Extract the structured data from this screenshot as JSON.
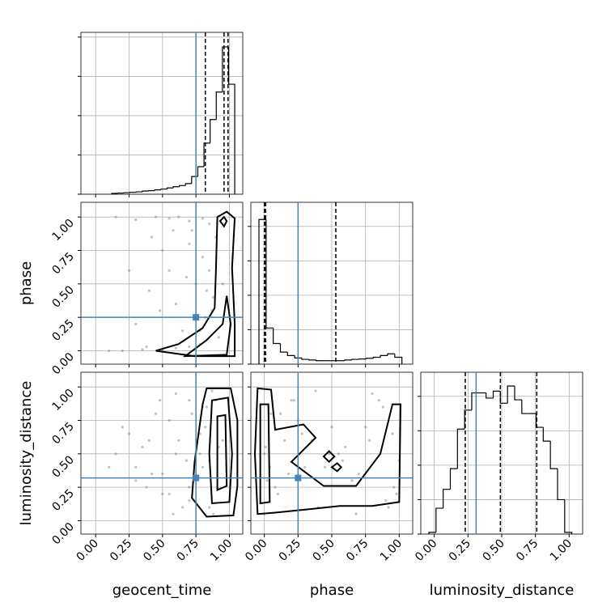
{
  "chart_data": [
    {
      "type": "histogram",
      "xtick_labels": false,
      "ytick_labels": false,
      "color": "#000000",
      "truth_color": "#4682b4",
      "xlim": [
        -0.11,
        1.1
      ],
      "ylim": [
        0,
        4.12
      ],
      "xticks": [
        {
          "value": 0,
          "label": "0.00"
        },
        {
          "value": 0.25,
          "label": "0.25"
        },
        {
          "value": 0.5,
          "label": "0.50"
        },
        {
          "value": 0.75,
          "label": "0.75"
        },
        {
          "value": 1,
          "label": "1.00"
        }
      ],
      "yticks": [
        0,
        1,
        2,
        3,
        4
      ],
      "bins": [
        0.12,
        0.166,
        0.212,
        0.258,
        0.304,
        0.35,
        0.396,
        0.442,
        0.488,
        0.534,
        0.58,
        0.626,
        0.672,
        0.718,
        0.764,
        0.81,
        0.856,
        0.902,
        0.948,
        0.994,
        1.04
      ],
      "values": [
        0.02,
        0.03,
        0.04,
        0.05,
        0.06,
        0.08,
        0.09,
        0.11,
        0.13,
        0.16,
        0.19,
        0.22,
        0.27,
        0.45,
        0.7,
        1.3,
        1.9,
        2.6,
        3.75,
        2.8
      ],
      "truth": 0.75,
      "quantiles": [
        0.82,
        0.96,
        0.99
      ]
    },
    {
      "type": "scatter",
      "xtick_labels": false,
      "ytick_labels": true,
      "ylabel": "phase",
      "color": "#000000",
      "truth_color": "#4682b4",
      "xlim": [
        -0.11,
        1.1
      ],
      "ylim": [
        -0.1,
        1.11
      ],
      "xticks": [
        {
          "value": 0,
          "label": "0.00"
        },
        {
          "value": 0.25,
          "label": "0.25"
        },
        {
          "value": 0.5,
          "label": "0.50"
        },
        {
          "value": 0.75,
          "label": "0.75"
        },
        {
          "value": 1,
          "label": "1.00"
        }
      ],
      "yticks": [
        {
          "value": 0,
          "label": "0.00"
        },
        {
          "value": 0.25,
          "label": "0.25"
        },
        {
          "value": 0.5,
          "label": "0.50"
        },
        {
          "value": 0.75,
          "label": "0.75"
        },
        {
          "value": 1,
          "label": "1.00"
        }
      ],
      "x": [
        0.15,
        0.3,
        0.45,
        0.55,
        0.62,
        0.7,
        0.8,
        0.85,
        0.2,
        0.35,
        0.5,
        0.6,
        0.7,
        0.78,
        0.85,
        0.88,
        0.8,
        0.7,
        0.55,
        0.4,
        0.3,
        0.6,
        0.75,
        0.82,
        0.9,
        0.65,
        0.5,
        0.92,
        0.72,
        0.42,
        0.25,
        0.87,
        0.78,
        0.68,
        0.58,
        0.95,
        0.83,
        0.38,
        0.1,
        0.48
      ],
      "y": [
        1.0,
        0.98,
        1.0,
        0.99,
        1.0,
        0.97,
        0.99,
        0.95,
        0.0,
        0.01,
        0.0,
        0.02,
        0.03,
        0.05,
        0.6,
        0.4,
        0.7,
        0.8,
        0.6,
        0.45,
        0.2,
        0.35,
        0.5,
        0.25,
        0.85,
        0.15,
        0.75,
        0.1,
        0.9,
        0.85,
        0.6,
        0.3,
        0.15,
        0.55,
        0.9,
        0.5,
        0.45,
        0.03,
        0.0,
        0.3
      ],
      "contours": [
        {
          "x": [
            0.45,
            0.74,
            1.04,
            1.04,
            1.02,
            1.04,
            0.98,
            0.91,
            0.9,
            0.89,
            0.8,
            0.62
          ],
          "y": [
            0.0,
            -0.04,
            -0.04,
            0.2,
            0.62,
            0.99,
            1.04,
            1.0,
            0.62,
            0.32,
            0.17,
            0.05
          ]
        },
        {
          "x": [
            0.67,
            0.98,
            1.01,
            0.98,
            0.95,
            0.83
          ],
          "y": [
            -0.04,
            -0.03,
            0.2,
            0.41,
            0.2,
            0.08
          ]
        },
        {
          "x": [
            0.93,
            0.96,
            0.98,
            0.96
          ],
          "y": [
            0.97,
            1.0,
            0.97,
            0.93
          ]
        }
      ],
      "truths": [
        0.75,
        0.25
      ]
    },
    {
      "type": "histogram",
      "xtick_labels": false,
      "ytick_labels": false,
      "color": "#000000",
      "truth_color": "#4682b4",
      "xlim": [
        -0.1,
        1.1
      ],
      "ylim": [
        0,
        4.7
      ],
      "xticks": [
        {
          "value": 0,
          "label": "0.00"
        },
        {
          "value": 0.25,
          "label": "0.25"
        },
        {
          "value": 0.5,
          "label": "0.50"
        },
        {
          "value": 0.75,
          "label": "0.75"
        },
        {
          "value": 1,
          "label": "1.00"
        }
      ],
      "yticks": [
        0,
        1,
        2,
        3,
        4
      ],
      "bins": [
        -0.04,
        0.013,
        0.066,
        0.119,
        0.172,
        0.225,
        0.278,
        0.331,
        0.384,
        0.437,
        0.49,
        0.543,
        0.596,
        0.649,
        0.702,
        0.755,
        0.808,
        0.861,
        0.914,
        0.967,
        1.02
      ],
      "values": [
        4.2,
        1.05,
        0.6,
        0.35,
        0.25,
        0.18,
        0.14,
        0.12,
        0.1,
        0.1,
        0.1,
        0.1,
        0.12,
        0.14,
        0.15,
        0.17,
        0.2,
        0.25,
        0.3,
        0.2
      ],
      "truth": 0.25,
      "quantiles": [
        0.0,
        0.01,
        0.53
      ]
    },
    {
      "type": "scatter",
      "xtick_labels": true,
      "ytick_labels": true,
      "xlabel": "geocent_time",
      "ylabel": "luminosity_distance",
      "color": "#000000",
      "truth_color": "#4682b4",
      "xlim": [
        -0.11,
        1.1
      ],
      "ylim": [
        -0.1,
        1.11
      ],
      "xticks": [
        {
          "value": 0,
          "label": "0.00"
        },
        {
          "value": 0.25,
          "label": "0.25"
        },
        {
          "value": 0.5,
          "label": "0.50"
        },
        {
          "value": 0.75,
          "label": "0.75"
        },
        {
          "value": 1,
          "label": "1.00"
        }
      ],
      "yticks": [
        {
          "value": 0,
          "label": "0.00"
        },
        {
          "value": 0.25,
          "label": "0.25"
        },
        {
          "value": 0.5,
          "label": "0.50"
        },
        {
          "value": 0.75,
          "label": "0.75"
        },
        {
          "value": 1,
          "label": "1.00"
        }
      ],
      "x": [
        0.15,
        0.3,
        0.45,
        0.55,
        0.62,
        0.7,
        0.8,
        0.85,
        0.2,
        0.35,
        0.5,
        0.6,
        0.7,
        0.78,
        0.85,
        0.88,
        0.8,
        0.7,
        0.55,
        0.4,
        0.3,
        0.6,
        0.75,
        0.82,
        0.9,
        0.65,
        0.5,
        0.92,
        0.72,
        0.42,
        0.25,
        0.87,
        0.78,
        0.68,
        0.58,
        0.95,
        0.83,
        0.38,
        0.1,
        0.48
      ],
      "y": [
        0.5,
        0.3,
        0.8,
        0.2,
        0.6,
        0.9,
        0.4,
        0.1,
        0.7,
        0.55,
        0.35,
        0.95,
        0.15,
        0.65,
        0.45,
        0.05,
        0.85,
        0.25,
        0.75,
        0.6,
        0.4,
        0.5,
        0.3,
        0.7,
        0.9,
        0.1,
        0.2,
        0.55,
        0.8,
        0.35,
        0.65,
        0.97,
        0.5,
        0.45,
        0.05,
        0.6,
        0.85,
        0.25,
        0.4,
        0.9
      ],
      "contours": [
        {
          "x": [
            0.83,
            1.01,
            1.06,
            1.06,
            1.03,
            0.83,
            0.72,
            0.74,
            0.8
          ],
          "y": [
            0.99,
            0.99,
            0.75,
            0.26,
            0.04,
            0.03,
            0.17,
            0.44,
            0.87
          ]
        },
        {
          "x": [
            0.87,
            0.99,
            1.02,
            1.0,
            0.87,
            0.85
          ],
          "y": [
            0.9,
            0.92,
            0.5,
            0.14,
            0.13,
            0.5
          ]
        },
        {
          "x": [
            0.91,
            0.97,
            0.98,
            0.91
          ],
          "y": [
            0.78,
            0.79,
            0.26,
            0.23
          ]
        }
      ],
      "truths": [
        0.75,
        0.32
      ]
    },
    {
      "type": "scatter",
      "xtick_labels": true,
      "ytick_labels": false,
      "xlabel": "phase",
      "color": "#000000",
      "truth_color": "#4682b4",
      "xlim": [
        -0.1,
        1.1
      ],
      "ylim": [
        -0.1,
        1.11
      ],
      "xticks": [
        {
          "value": 0,
          "label": "0.00"
        },
        {
          "value": 0.25,
          "label": "0.25"
        },
        {
          "value": 0.5,
          "label": "0.50"
        },
        {
          "value": 0.75,
          "label": "0.75"
        },
        {
          "value": 1,
          "label": "1.00"
        }
      ],
      "yticks": [
        {
          "value": 0,
          "label": "0.00"
        },
        {
          "value": 0.25,
          "label": "0.25"
        },
        {
          "value": 0.5,
          "label": "0.50"
        },
        {
          "value": 0.75,
          "label": "0.75"
        },
        {
          "value": 1,
          "label": "1.00"
        }
      ],
      "x": [
        0.0,
        0.02,
        0.05,
        0.1,
        0.15,
        0.2,
        0.3,
        0.4,
        0.5,
        0.6,
        0.7,
        0.8,
        0.9,
        0.95,
        1.0,
        0.0,
        0.03,
        0.08,
        0.25,
        0.35,
        0.45,
        0.55,
        0.65,
        0.75,
        0.85,
        0.92,
        0.98,
        0.01,
        0.12,
        0.18,
        0.28,
        0.38,
        0.48,
        0.58,
        0.68,
        0.78,
        0.88,
        0.96,
        0.04,
        0.22
      ],
      "y": [
        0.5,
        0.3,
        0.8,
        0.2,
        0.6,
        0.9,
        0.4,
        0.1,
        0.7,
        0.55,
        0.35,
        0.95,
        0.15,
        0.65,
        0.45,
        0.05,
        0.85,
        0.25,
        0.75,
        0.6,
        0.4,
        0.5,
        0.3,
        0.7,
        0.9,
        0.1,
        0.2,
        0.55,
        0.8,
        0.35,
        0.65,
        0.97,
        0.5,
        0.45,
        0.05,
        0.6,
        0.85,
        0.25,
        0.4,
        0.9
      ],
      "contours": [
        {
          "x": [
            -0.05,
            0.05,
            0.08,
            0.29,
            0.38,
            0.2,
            0.44,
            0.68,
            0.86,
            0.95,
            1.01,
            1.0,
            0.8,
            0.56,
            0.08,
            -0.05,
            -0.07
          ],
          "y": [
            0.99,
            0.98,
            0.68,
            0.72,
            0.62,
            0.44,
            0.26,
            0.26,
            0.5,
            0.87,
            0.87,
            0.14,
            0.11,
            0.11,
            0.06,
            0.05,
            0.5
          ]
        },
        {
          "x": [
            -0.03,
            0.03,
            0.04,
            -0.03
          ],
          "y": [
            0.87,
            0.87,
            0.14,
            0.13
          ]
        },
        {
          "x": [
            0.44,
            0.48,
            0.52,
            0.48
          ],
          "y": [
            0.48,
            0.52,
            0.48,
            0.44
          ]
        },
        {
          "x": [
            0.5,
            0.54,
            0.57,
            0.54
          ],
          "y": [
            0.4,
            0.43,
            0.4,
            0.37
          ]
        }
      ],
      "truths": [
        0.25,
        0.32
      ]
    },
    {
      "type": "histogram",
      "xtick_labels": true,
      "ytick_labels": false,
      "xlabel": "luminosity_distance",
      "color": "#000000",
      "truth_color": "#4682b4",
      "xlim": [
        -0.1,
        1.1
      ],
      "ylim": [
        0,
        4.7
      ],
      "xticks": [
        {
          "value": 0,
          "label": "0.00"
        },
        {
          "value": 0.25,
          "label": "0.25"
        },
        {
          "value": 0.5,
          "label": "0.50"
        },
        {
          "value": 0.75,
          "label": "0.75"
        },
        {
          "value": 1,
          "label": "1.00"
        }
      ],
      "yticks": [
        0,
        1,
        2,
        3,
        4
      ],
      "bins": [
        -0.04,
        0.013,
        0.066,
        0.119,
        0.172,
        0.225,
        0.278,
        0.331,
        0.384,
        0.437,
        0.49,
        0.543,
        0.596,
        0.649,
        0.702,
        0.755,
        0.808,
        0.861,
        0.914,
        0.967,
        1.02
      ],
      "values": [
        0.05,
        0.75,
        1.3,
        1.9,
        3.05,
        3.6,
        4.1,
        4.1,
        3.95,
        4.15,
        3.8,
        4.3,
        3.9,
        3.5,
        3.5,
        3.1,
        2.7,
        1.9,
        1.0,
        0.05
      ],
      "truth": 0.31,
      "quantiles": [
        0.23,
        0.49,
        0.76
      ]
    }
  ]
}
